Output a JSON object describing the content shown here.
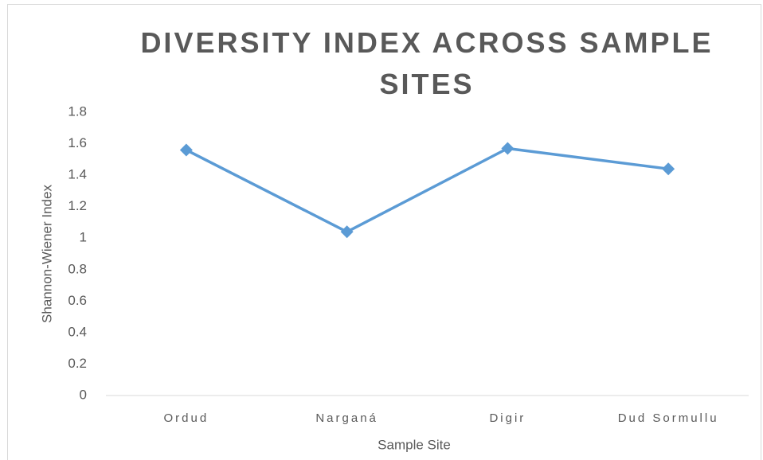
{
  "chart_data": {
    "type": "line",
    "title": "DIVERSITY INDEX ACROSS SAMPLE SITES",
    "x_label": "Sample Site",
    "y_label": "Shannon-Wiener Index",
    "categories": [
      "Ordud",
      "Narganá",
      "Digir",
      "Dud Sormullu"
    ],
    "values": [
      1.56,
      1.04,
      1.57,
      1.44
    ],
    "color": "#5b9bd5",
    "ylim": [
      0,
      1.8
    ],
    "yticks": [
      0,
      0.2,
      0.4,
      0.6,
      0.8,
      1,
      1.2,
      1.4,
      1.6,
      1.8
    ],
    "grid": false
  }
}
